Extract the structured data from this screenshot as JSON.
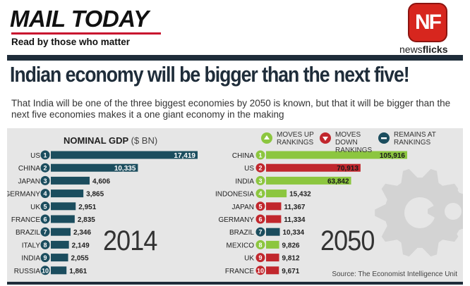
{
  "header": {
    "logo": "MAIL TODAY",
    "tagline": "Read by those who matter",
    "badge": "NF",
    "brand_light": "news",
    "brand_bold": "flicks"
  },
  "headline": "Indian economy will be bigger than the next five!",
  "subhead": "That India will be one of the three biggest economies by 2050 is known, but that it will be bigger than the next five economies makes it a one giant economy in the making",
  "source": "Source: The Economist Intelligence Unit",
  "colors": {
    "dark": "#1f2d3a",
    "teal": "#1b4d5e",
    "green": "#8cc63f",
    "red": "#c1272d",
    "background": "#e6e6e6"
  },
  "legend": [
    {
      "label": "MOVES UP RANKINGS",
      "color": "#8cc63f",
      "icon": "up-arrow-icon"
    },
    {
      "label": "MOVES DOWN RANKINGS",
      "color": "#c1272d",
      "icon": "down-arrow-icon"
    },
    {
      "label": "REMAINS AT RANKINGS",
      "color": "#1b4d5e",
      "icon": "dash-icon"
    }
  ],
  "chart_data": [
    {
      "type": "bar",
      "orientation": "horizontal",
      "title": "NOMINAL GDP",
      "unit": "($ BN)",
      "year": "2014",
      "ranks": [
        1,
        2,
        3,
        4,
        5,
        6,
        7,
        8,
        9,
        10
      ],
      "categories": [
        "US",
        "CHINA",
        "JAPAN",
        "GERMANY",
        "UK",
        "FRANCE",
        "BRAZIL",
        "ITALY",
        "INDIA",
        "RUSSIA"
      ],
      "values": [
        17419,
        10335,
        4606,
        3865,
        2951,
        2835,
        2346,
        2149,
        2055,
        1861
      ],
      "labels": [
        "17,419",
        "10,335",
        "4,606",
        "3,865",
        "2,951",
        "2,835",
        "2,346",
        "2,149",
        "2,055",
        "1,861"
      ],
      "status": [
        "same",
        "same",
        "same",
        "same",
        "same",
        "same",
        "same",
        "same",
        "same",
        "same"
      ]
    },
    {
      "type": "bar",
      "orientation": "horizontal",
      "year": "2050",
      "ranks": [
        1,
        2,
        3,
        4,
        5,
        6,
        7,
        8,
        9,
        10
      ],
      "categories": [
        "CHINA",
        "US",
        "INDIA",
        "INDONESIA",
        "JAPAN",
        "GERMANY",
        "BRAZIL",
        "MEXICO",
        "UK",
        "FRANCE"
      ],
      "values": [
        105916,
        70913,
        63842,
        15432,
        11367,
        11334,
        10334,
        9826,
        9812,
        9671
      ],
      "labels": [
        "105,916",
        "70,913",
        "63,842",
        "15,432",
        "11,367",
        "11,334",
        "10,334",
        "9,826",
        "9,812",
        "9,671"
      ],
      "status": [
        "up",
        "down",
        "up",
        "up",
        "down",
        "down",
        "same",
        "up",
        "down",
        "down"
      ]
    }
  ]
}
